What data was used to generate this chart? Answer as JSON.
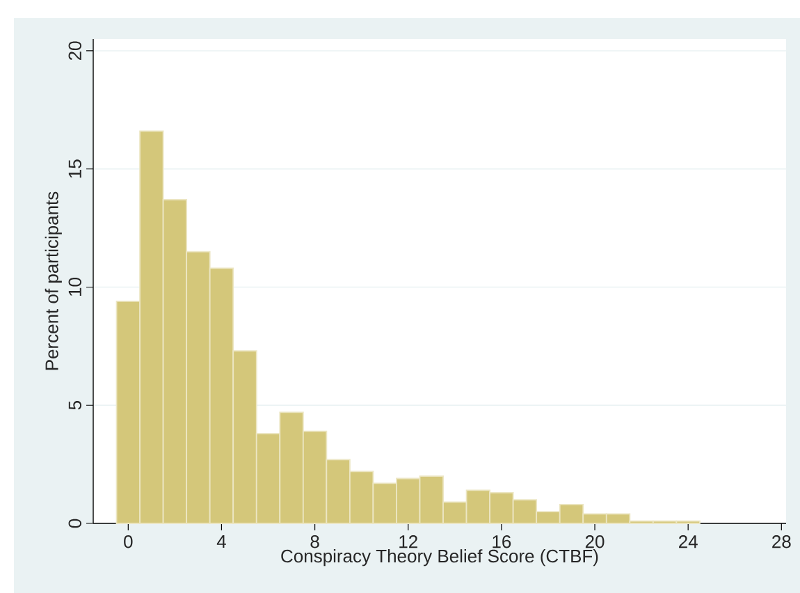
{
  "chart_data": {
    "type": "histogram",
    "xlabel": "Conspiracy Theory Belief Score (CTBF)",
    "ylabel": "Percent of participants",
    "bins": [
      -0.5,
      0.5,
      1.5,
      2.5,
      3.5,
      4.5,
      5.5,
      6.5,
      7.5,
      8.5,
      9.5,
      10.5,
      11.5,
      12.5,
      13.5,
      14.5,
      15.5,
      16.5,
      17.5,
      18.5,
      19.5,
      20.5,
      21.5,
      22.5,
      23.5,
      24.5
    ],
    "values": [
      9.4,
      16.6,
      13.7,
      11.5,
      10.8,
      7.3,
      3.8,
      4.7,
      3.9,
      2.7,
      2.2,
      1.7,
      1.9,
      2.0,
      0.9,
      1.4,
      1.3,
      1.0,
      0.5,
      0.8,
      0.4,
      0.4,
      0.1,
      0.1,
      0.1
    ],
    "color": "#d4c77a",
    "xlim": [
      -1.5,
      28.2
    ],
    "ylim": [
      0,
      20.5
    ],
    "xticks": [
      0,
      4,
      8,
      12,
      16,
      20,
      24,
      28
    ],
    "yticks": [
      0,
      5,
      10,
      15,
      20
    ],
    "grid": "y"
  }
}
